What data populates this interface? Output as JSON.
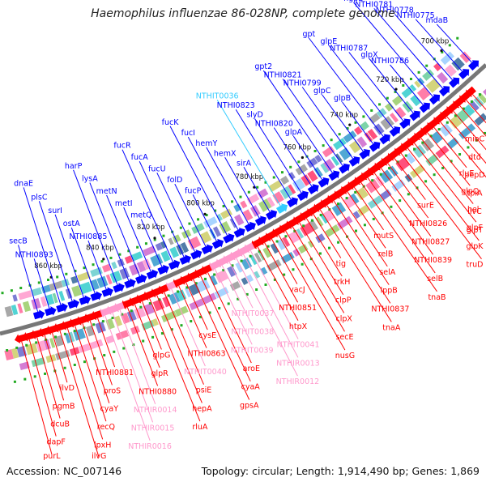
{
  "title": "Haemophilus influenzae 86-028NP, complete genome",
  "accession_text": "Accession: NC_007146",
  "summary_text": "Topology: circular; Length: 1,914,490 bp; Genes: 1,869",
  "colors": {
    "forward": "#0000ff",
    "reverse": "#ff0000",
    "forward_rna": "#33ccff",
    "reverse_rna": "#ff99cc",
    "backbone": "#777777"
  },
  "kbp_labels": [
    "700 kbp",
    "720 kbp",
    "740 kbp",
    "760 kbp",
    "780 kbp",
    "800 kbp",
    "820 kbp",
    "840 kbp",
    "860 kbp"
  ],
  "forward_genes": [
    {
      "name": "mdaB",
      "type": "cds"
    },
    {
      "name": "NTHI0775",
      "type": "cds"
    },
    {
      "name": "NTHI0778",
      "type": "cds"
    },
    {
      "name": "NTHI0781",
      "type": "cds"
    },
    {
      "name": "hgpB",
      "type": "cds"
    },
    {
      "name": "NTHI0786",
      "type": "cds"
    },
    {
      "name": "glpX",
      "type": "cds"
    },
    {
      "name": "NTHI0787",
      "type": "cds"
    },
    {
      "name": "glpE",
      "type": "cds"
    },
    {
      "name": "gpt",
      "type": "cds"
    },
    {
      "name": "glpB",
      "type": "cds"
    },
    {
      "name": "glpC",
      "type": "cds"
    },
    {
      "name": "NTHI0799",
      "type": "cds"
    },
    {
      "name": "NTHI0821",
      "type": "cds"
    },
    {
      "name": "gpt2",
      "type": "cds"
    },
    {
      "name": "glpA",
      "type": "cds"
    },
    {
      "name": "NTHI0820",
      "type": "cds"
    },
    {
      "name": "slyD",
      "type": "cds"
    },
    {
      "name": "NTHI0823",
      "type": "cds"
    },
    {
      "name": "NTHIT0036",
      "type": "rna"
    },
    {
      "name": "sirA",
      "type": "cds"
    },
    {
      "name": "hemX",
      "type": "cds"
    },
    {
      "name": "hemY",
      "type": "cds"
    },
    {
      "name": "fucI",
      "type": "cds"
    },
    {
      "name": "fucK",
      "type": "cds"
    },
    {
      "name": "fucP",
      "type": "cds"
    },
    {
      "name": "folD",
      "type": "cds"
    },
    {
      "name": "fucU",
      "type": "cds"
    },
    {
      "name": "fucA",
      "type": "cds"
    },
    {
      "name": "fucR",
      "type": "cds"
    },
    {
      "name": "metQ",
      "type": "cds"
    },
    {
      "name": "metI",
      "type": "cds"
    },
    {
      "name": "metN",
      "type": "cds"
    },
    {
      "name": "lysA",
      "type": "cds"
    },
    {
      "name": "harP",
      "type": "cds"
    },
    {
      "name": "NTHI0885",
      "type": "cds"
    },
    {
      "name": "ostA",
      "type": "cds"
    },
    {
      "name": "surI",
      "type": "cds"
    },
    {
      "name": "plsC",
      "type": "cds"
    },
    {
      "name": "dnaE",
      "type": "cds"
    },
    {
      "name": "NTHI0893",
      "type": "cds"
    },
    {
      "name": "secB",
      "type": "cds"
    }
  ],
  "reverse_genes": [
    {
      "name": "mioC",
      "type": "cds"
    },
    {
      "name": "dtd",
      "type": "cds"
    },
    {
      "name": "pepD",
      "type": "cds"
    },
    {
      "name": "tpiA",
      "type": "cds"
    },
    {
      "name": "ilvC",
      "type": "cds"
    },
    {
      "name": "glpT",
      "type": "cds"
    },
    {
      "name": "rluE",
      "type": "cds"
    },
    {
      "name": "glpQ",
      "type": "cds"
    },
    {
      "name": "hel",
      "type": "cds"
    },
    {
      "name": "glpF",
      "type": "cds"
    },
    {
      "name": "glpK",
      "type": "cds"
    },
    {
      "name": "truD",
      "type": "cds"
    },
    {
      "name": "surE",
      "type": "cds"
    },
    {
      "name": "NTHI0826",
      "type": "cds"
    },
    {
      "name": "NTHI0827",
      "type": "cds"
    },
    {
      "name": "NTHI0839",
      "type": "cds"
    },
    {
      "name": "selB",
      "type": "cds"
    },
    {
      "name": "tnaB",
      "type": "cds"
    },
    {
      "name": "mutS",
      "type": "cds"
    },
    {
      "name": "relB",
      "type": "cds"
    },
    {
      "name": "selA",
      "type": "cds"
    },
    {
      "name": "lppB",
      "type": "cds"
    },
    {
      "name": "NTHI0837",
      "type": "cds"
    },
    {
      "name": "tnaA",
      "type": "cds"
    },
    {
      "name": "tig",
      "type": "cds"
    },
    {
      "name": "trkH",
      "type": "cds"
    },
    {
      "name": "clpP",
      "type": "cds"
    },
    {
      "name": "clpX",
      "type": "cds"
    },
    {
      "name": "secE",
      "type": "cds"
    },
    {
      "name": "nusG",
      "type": "cds"
    },
    {
      "name": "vacJ",
      "type": "cds"
    },
    {
      "name": "NTHI0851",
      "type": "cds"
    },
    {
      "name": "htpX",
      "type": "cds"
    },
    {
      "name": "NTHIT0041",
      "type": "rna"
    },
    {
      "name": "NTHIR0013",
      "type": "rna"
    },
    {
      "name": "NTHIR0012",
      "type": "rna"
    },
    {
      "name": "NTHIT0037",
      "type": "rna"
    },
    {
      "name": "NTHIT0038",
      "type": "rna"
    },
    {
      "name": "NTHIT0039",
      "type": "rna"
    },
    {
      "name": "aroE",
      "type": "cds"
    },
    {
      "name": "cyaA",
      "type": "cds"
    },
    {
      "name": "gpsA",
      "type": "cds"
    },
    {
      "name": "cysE",
      "type": "cds"
    },
    {
      "name": "NTHI0863",
      "type": "cds"
    },
    {
      "name": "NTHIT0040",
      "type": "rna"
    },
    {
      "name": "psiE",
      "type": "cds"
    },
    {
      "name": "hepA",
      "type": "cds"
    },
    {
      "name": "rluA",
      "type": "cds"
    },
    {
      "name": "glpG",
      "type": "cds"
    },
    {
      "name": "glpR",
      "type": "cds"
    },
    {
      "name": "NTHI0880",
      "type": "cds"
    },
    {
      "name": "NTHIR0014",
      "type": "rna"
    },
    {
      "name": "NTHIR0015",
      "type": "rna"
    },
    {
      "name": "NTHIR0016",
      "type": "rna"
    },
    {
      "name": "NTHI0881",
      "type": "cds"
    },
    {
      "name": "proS",
      "type": "cds"
    },
    {
      "name": "cyaY",
      "type": "cds"
    },
    {
      "name": "recQ",
      "type": "cds"
    },
    {
      "name": "lpxH",
      "type": "cds"
    },
    {
      "name": "ilvG",
      "type": "cds"
    },
    {
      "name": "ilvD",
      "type": "cds"
    },
    {
      "name": "pgmB",
      "type": "cds"
    },
    {
      "name": "dcuB",
      "type": "cds"
    },
    {
      "name": "dapF",
      "type": "cds"
    },
    {
      "name": "purL",
      "type": "cds"
    }
  ]
}
